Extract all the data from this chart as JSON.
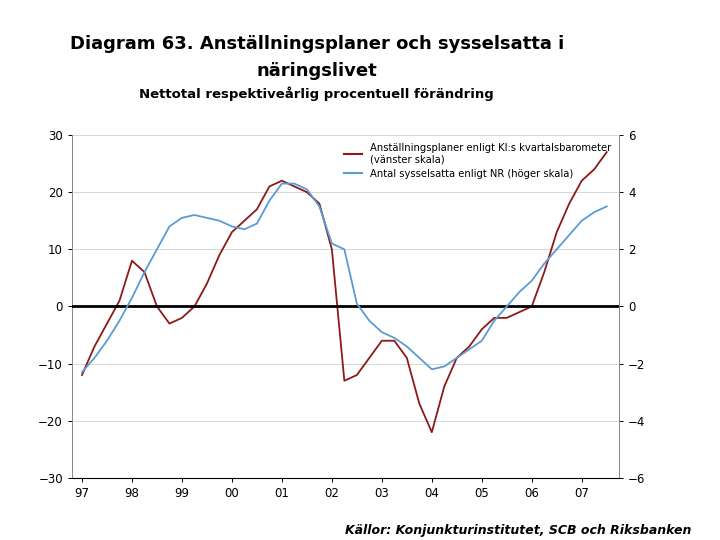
{
  "title_line1": "Diagram 63. Anställningsplaner och sysselsatta i",
  "title_line2": "näringslivet",
  "subtitle": "Nettotal respektiveårlig procentuell förändring",
  "footer": "Källor: Konjunkturinstitutet, SCB och Riksbanken",
  "legend1": "Anställningsplaner enligt KI:s kvartalsbarometer\n(vänster skala)",
  "legend2": "Antal sysselsatta enligt NR (höger skala)",
  "left_ylim": [
    -30,
    30
  ],
  "right_ylim": [
    -6,
    6
  ],
  "yticks_left": [
    -30,
    -20,
    -10,
    0,
    10,
    20,
    30
  ],
  "yticks_right": [
    -6,
    -4,
    -2,
    0,
    2,
    4,
    6
  ],
  "xticks": [
    1997,
    1998,
    1999,
    2000,
    2001,
    2002,
    2003,
    2004,
    2005,
    2006,
    2007
  ],
  "xtick_labels": [
    "97",
    "98",
    "99",
    "00",
    "01",
    "02",
    "03",
    "04",
    "05",
    "06",
    "07"
  ],
  "color_left": "#8B1A1A",
  "color_right": "#5B9BD5",
  "background_color": "#FFFFFF",
  "footer_bar_color": "#1F3864",
  "logo_bar_color": "#1F3864",
  "left_series_x": [
    1997.0,
    1997.25,
    1997.5,
    1997.75,
    1998.0,
    1998.25,
    1998.5,
    1998.75,
    1999.0,
    1999.25,
    1999.5,
    1999.75,
    2000.0,
    2000.25,
    2000.5,
    2000.75,
    2001.0,
    2001.25,
    2001.5,
    2001.75,
    2002.0,
    2002.25,
    2002.5,
    2002.75,
    2003.0,
    2003.25,
    2003.5,
    2003.75,
    2004.0,
    2004.25,
    2004.5,
    2004.75,
    2005.0,
    2005.25,
    2005.5,
    2005.75,
    2006.0,
    2006.25,
    2006.5,
    2006.75,
    2007.0,
    2007.25,
    2007.5
  ],
  "left_series_y": [
    -12,
    -7,
    -3,
    1,
    8,
    6,
    0,
    -3,
    -2,
    0,
    4,
    9,
    13,
    15,
    17,
    21,
    22,
    21,
    20,
    18,
    10,
    -13,
    -12,
    -9,
    -6,
    -6,
    -9,
    -17,
    -22,
    -14,
    -9,
    -7,
    -4,
    -2,
    -2,
    -1,
    0,
    6,
    13,
    18,
    22,
    24,
    27
  ],
  "right_series_x": [
    1997.0,
    1997.25,
    1997.5,
    1997.75,
    1998.0,
    1998.25,
    1998.5,
    1998.75,
    1999.0,
    1999.25,
    1999.5,
    1999.75,
    2000.0,
    2000.25,
    2000.5,
    2000.75,
    2001.0,
    2001.25,
    2001.5,
    2001.75,
    2002.0,
    2002.25,
    2002.5,
    2002.75,
    2003.0,
    2003.25,
    2003.5,
    2003.75,
    2004.0,
    2004.25,
    2004.5,
    2004.75,
    2005.0,
    2005.25,
    2005.5,
    2005.75,
    2006.0,
    2006.25,
    2006.5,
    2006.75,
    2007.0,
    2007.25,
    2007.5
  ],
  "right_series_y": [
    -2.3,
    -1.8,
    -1.2,
    -0.5,
    0.3,
    1.2,
    2.0,
    2.8,
    3.1,
    3.2,
    3.1,
    3.0,
    2.8,
    2.7,
    2.9,
    3.7,
    4.3,
    4.3,
    4.1,
    3.5,
    2.2,
    2.0,
    0.1,
    -0.5,
    -0.9,
    -1.1,
    -1.4,
    -1.8,
    -2.2,
    -2.1,
    -1.8,
    -1.5,
    -1.2,
    -0.5,
    0.0,
    0.5,
    0.9,
    1.5,
    2.0,
    2.5,
    3.0,
    3.3,
    3.5
  ]
}
